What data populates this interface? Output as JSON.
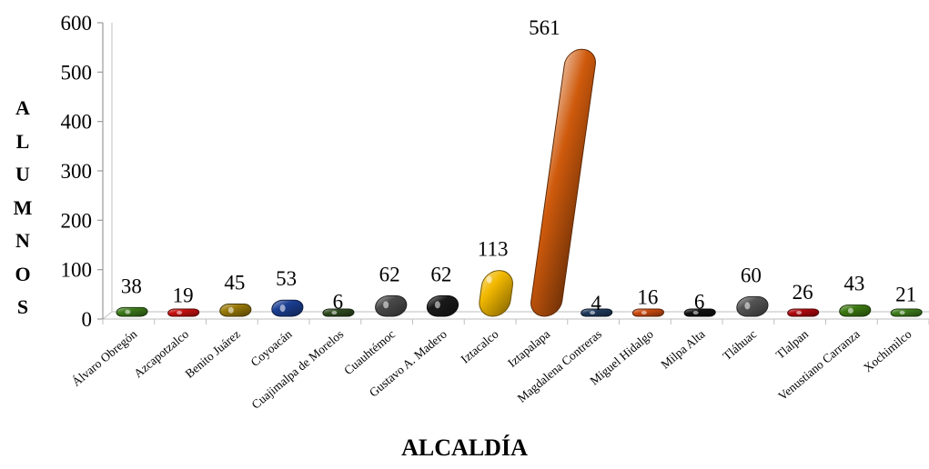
{
  "chart_data": {
    "type": "bar",
    "title": "",
    "xlabel": "ALCALDÍA",
    "ylabel": "ALUMNOS",
    "ylim": [
      0,
      600
    ],
    "yticks": [
      0,
      100,
      200,
      300,
      400,
      500,
      600
    ],
    "grid": false,
    "legend": "none",
    "categories": [
      "Álvaro Obregón",
      "Azcapotzalco",
      "Benito Juárez",
      "Coyoacán",
      "Cuajimalpa de Morelos",
      "Cuauhtémoc",
      "Gustavo A. Madero",
      "Iztacalco",
      "Iztapalapa",
      "Magdalena Contreras",
      "Miguel Hidalgo",
      "Milpa Alta",
      "Tláhuac",
      "Tlalpan",
      "Venustiano Carranza",
      "Xochimilco"
    ],
    "values": [
      38,
      19,
      45,
      53,
      6,
      62,
      62,
      113,
      561,
      4,
      16,
      6,
      60,
      26,
      43,
      21
    ],
    "colors": [
      "#3d7a1a",
      "#c8100f",
      "#9a7a08",
      "#1c3f94",
      "#2f4a1f",
      "#4a4a4a",
      "#1a1a1a",
      "#f2b800",
      "#cf5a0c",
      "#1f3a5c",
      "#cc4a10",
      "#111111",
      "#555555",
      "#b0080e",
      "#3c7a12",
      "#3f7d1c"
    ]
  }
}
